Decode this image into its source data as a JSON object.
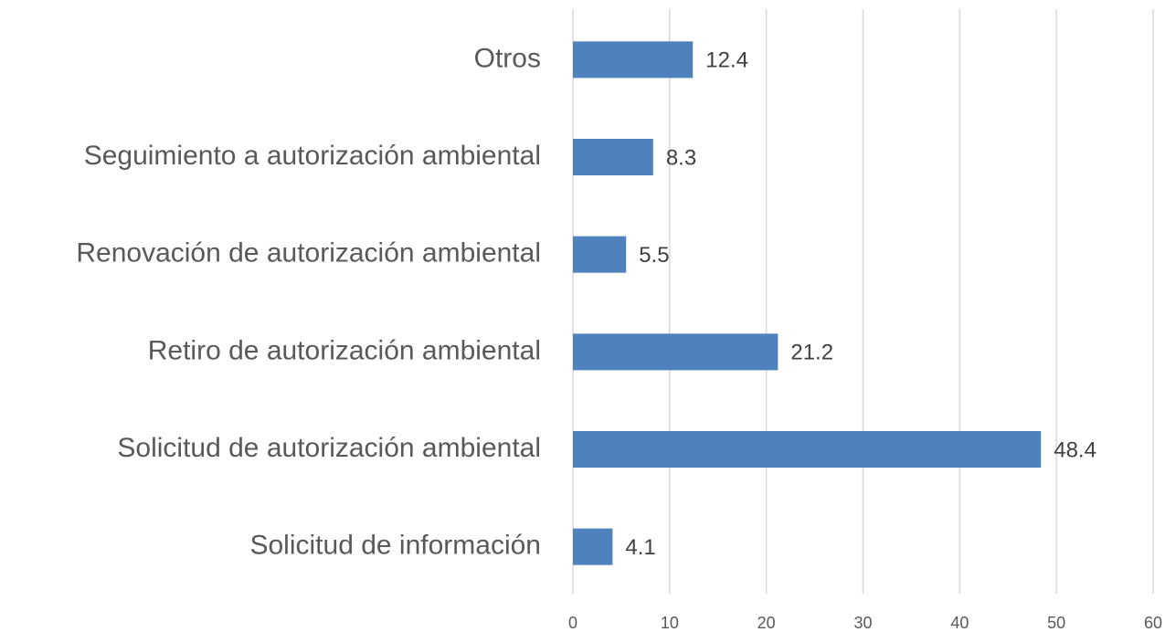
{
  "chart_data": {
    "type": "barh",
    "categories": [
      "Otros",
      "Seguimiento a autorización ambiental",
      "Renovación de autorización ambiental",
      "Retiro de autorización ambiental",
      "Solicitud de autorización ambiental",
      "Solicitud de información"
    ],
    "values": [
      12.4,
      8.3,
      5.5,
      21.2,
      48.4,
      4.1
    ],
    "color": "#4f81bd",
    "xlim": [
      0,
      60
    ],
    "xticks": [
      0,
      10,
      20,
      30,
      40,
      50,
      60
    ],
    "grid": true
  }
}
